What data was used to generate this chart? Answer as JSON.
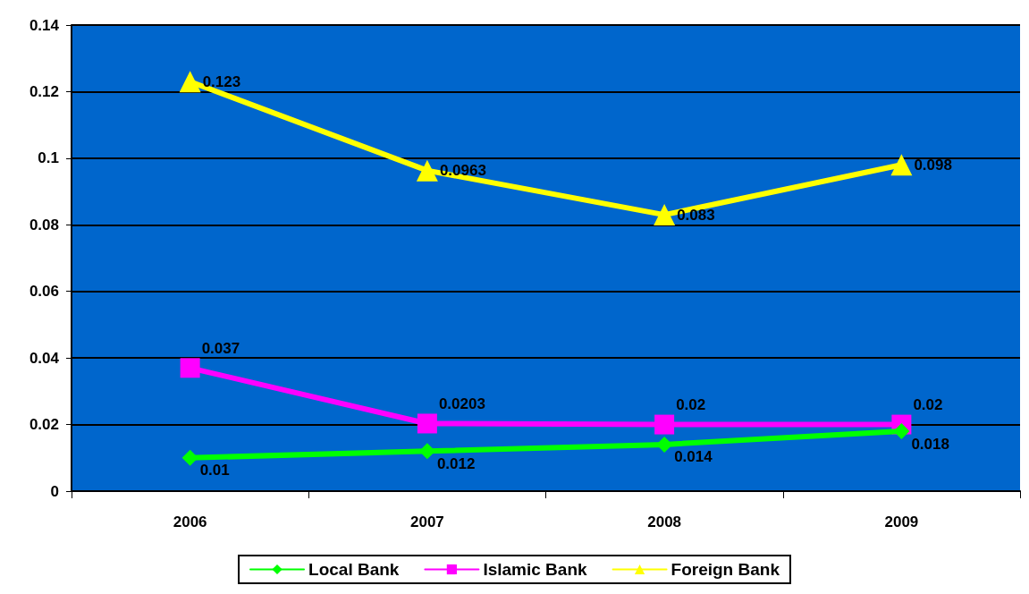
{
  "chart_data": {
    "type": "line",
    "categories": [
      "2006",
      "2007",
      "2008",
      "2009"
    ],
    "series": [
      {
        "name": "Local Bank",
        "color": "#00ff00",
        "marker": "diamond",
        "values": [
          0.01,
          0.012,
          0.014,
          0.018
        ]
      },
      {
        "name": "Islamic Bank",
        "color": "#ff00ff",
        "marker": "square",
        "values": [
          0.037,
          0.0203,
          0.02,
          0.02
        ]
      },
      {
        "name": "Foreign Bank",
        "color": "#ffff00",
        "marker": "triangle",
        "values": [
          0.123,
          0.0963,
          0.083,
          0.098
        ]
      }
    ],
    "ylim": [
      0,
      0.14
    ],
    "yticks": [
      0,
      0.02,
      0.04,
      0.06,
      0.08,
      0.1,
      0.12,
      0.14
    ],
    "grid": "y",
    "legend": "bottom",
    "data_labels": true
  }
}
